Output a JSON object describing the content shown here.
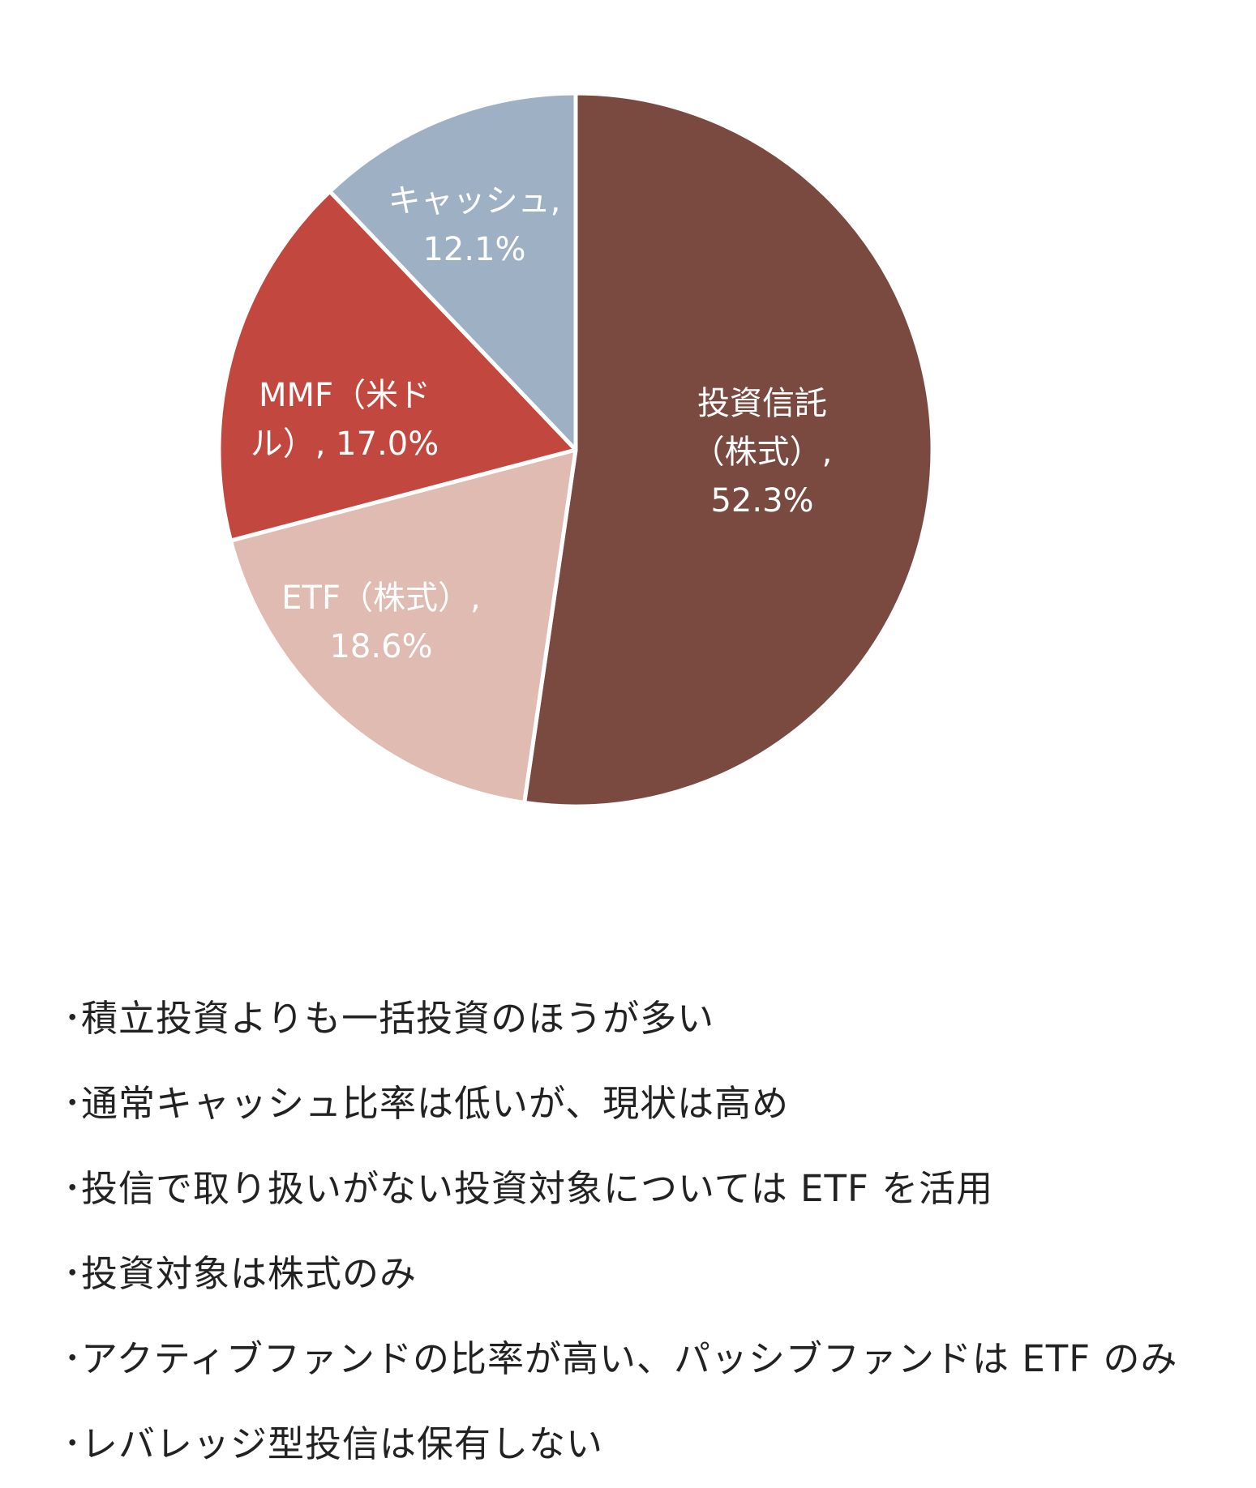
{
  "chart_data": {
    "type": "pie",
    "start": "12 o'clock, clockwise",
    "slices": [
      {
        "label_lines": [
          "投資信託",
          "（株式）,",
          "52.3%"
        ],
        "category": "投資信託（株式）",
        "value": 52.3,
        "color": "#7a4a41",
        "text_color": "#ffffff"
      },
      {
        "label_lines": [
          "ETF（株式）,",
          "18.6%"
        ],
        "category": "ETF（株式）",
        "value": 18.6,
        "color": "#dfbbb2",
        "text_color": "#ffffff"
      },
      {
        "label_lines": [
          "MMF（米ド",
          "ル）, 17.0%"
        ],
        "category": "MMF（米ドル）",
        "value": 17.0,
        "color": "#c2483f",
        "text_color": "#ffffff"
      },
      {
        "label_lines": [
          "キャッシュ,",
          "12.1%"
        ],
        "category": "キャッシュ",
        "value": 12.1,
        "color": "#9eb0c4",
        "text_color": "#ffffff"
      }
    ]
  },
  "notes": {
    "bullet": "･",
    "items": [
      "積立投資よりも一括投資のほうが多い",
      "通常キャッシュ比率は低いが、現状は高め",
      "投信で取り扱いがない投資対象については ETF を活用",
      "投資対象は株式のみ",
      "アクティブファンドの比率が高い、パッシブファンドは ETF のみ",
      "レバレッジ型投信は保有しない"
    ]
  }
}
